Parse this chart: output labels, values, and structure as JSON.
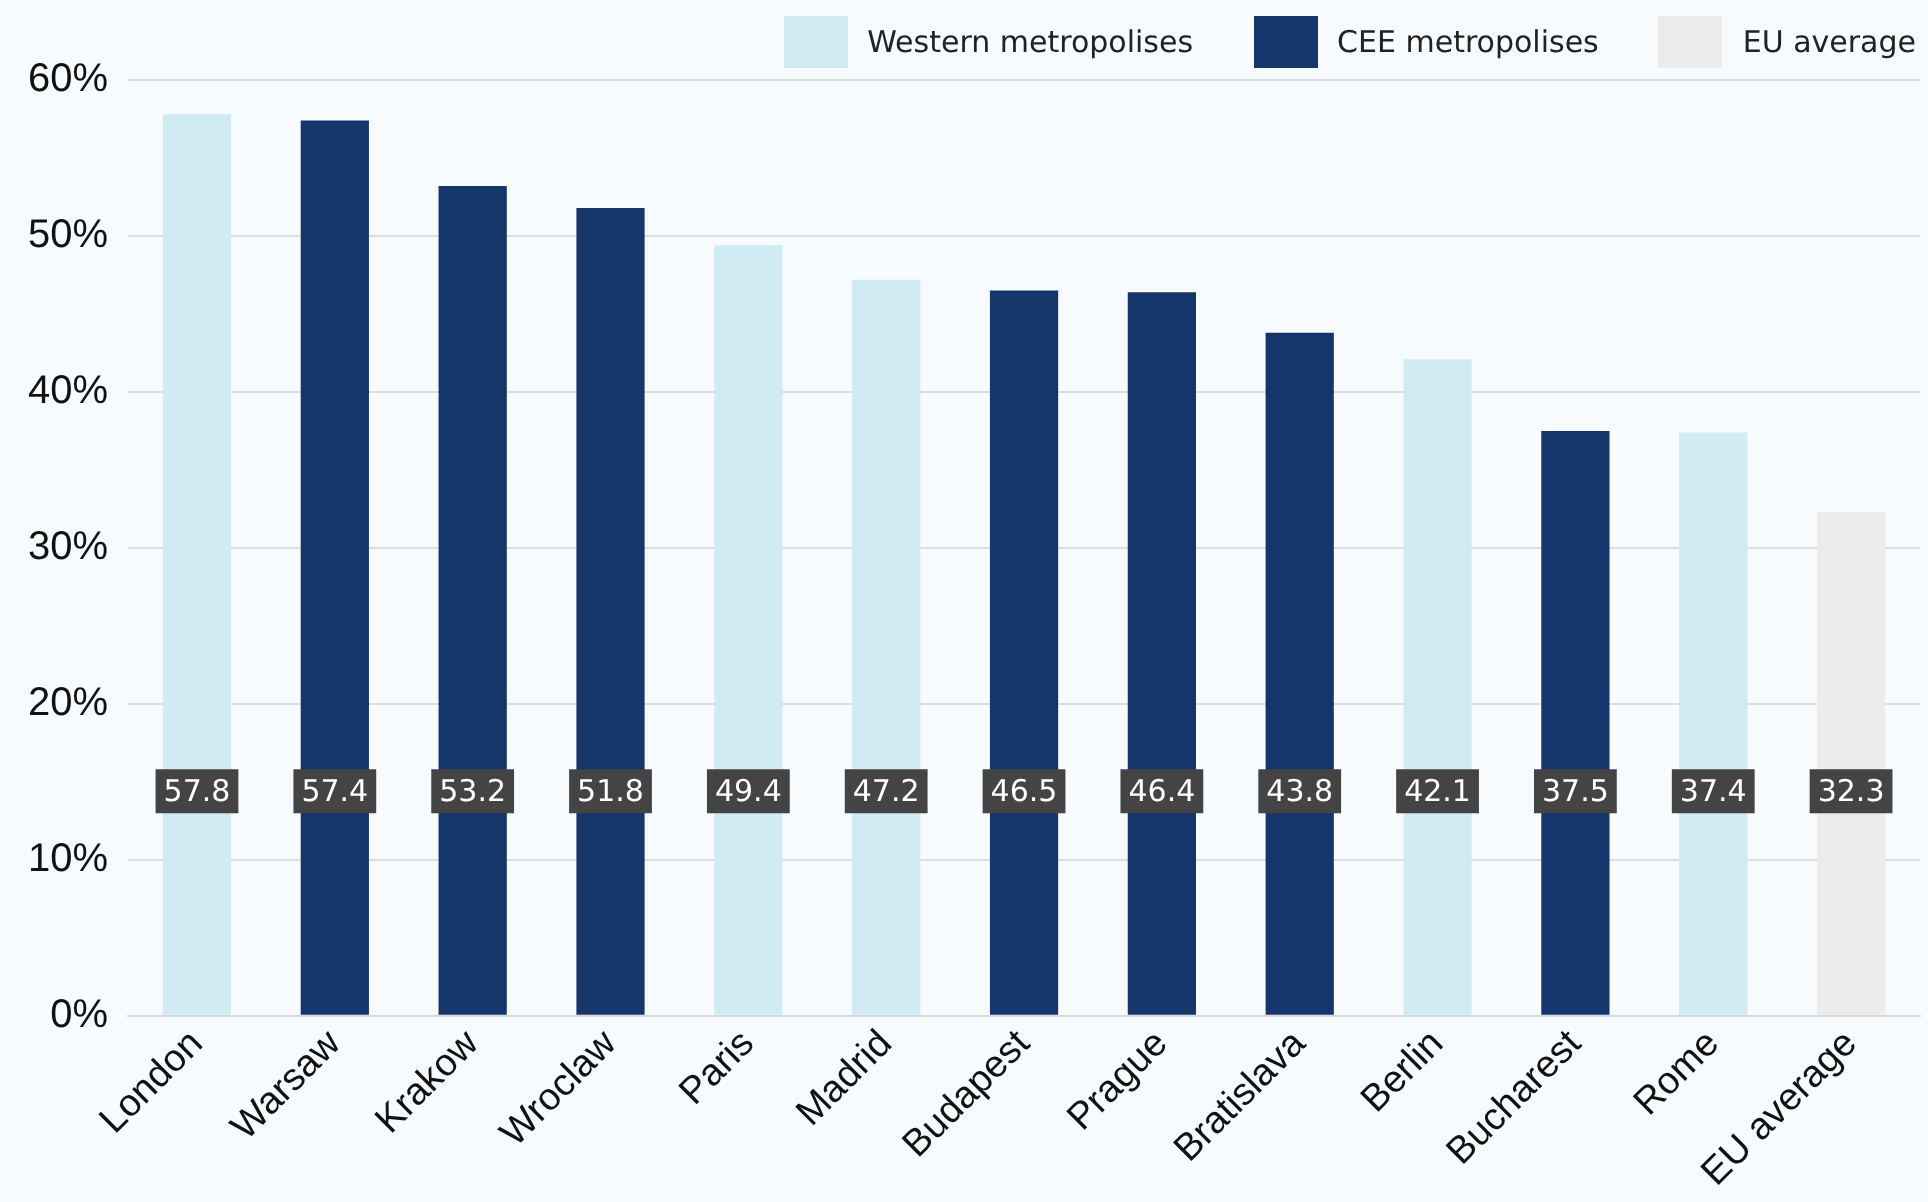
{
  "chart_data": {
    "type": "bar",
    "categories": [
      "London",
      "Warsaw",
      "Krakow",
      "Wroclaw",
      "Paris",
      "Madrid",
      "Budapest",
      "Prague",
      "Bratislava",
      "Berlin",
      "Bucharest",
      "Rome",
      "EU average"
    ],
    "series": [
      {
        "name": "Western metropolises",
        "color": "#d0ebf3",
        "values": [
          57.8,
          null,
          null,
          null,
          49.4,
          47.2,
          null,
          null,
          null,
          42.1,
          null,
          37.4,
          null
        ]
      },
      {
        "name": "CEE metropolises",
        "color": "#14366b",
        "values": [
          null,
          57.4,
          53.2,
          51.8,
          null,
          null,
          46.5,
          46.4,
          43.8,
          null,
          37.5,
          null,
          null
        ]
      },
      {
        "name": "EU average",
        "color": "#ececec",
        "values": [
          null,
          null,
          null,
          null,
          null,
          null,
          null,
          null,
          null,
          null,
          null,
          null,
          32.3
        ]
      }
    ],
    "ylim": [
      0,
      60
    ],
    "yticks": [
      {
        "value": 0,
        "label": "0%"
      },
      {
        "value": 10,
        "label": "10%"
      },
      {
        "value": 20,
        "label": "20%"
      },
      {
        "value": 30,
        "label": "30%"
      },
      {
        "value": 40,
        "label": "40%"
      },
      {
        "value": 50,
        "label": "50%"
      },
      {
        "value": 60,
        "label": "60%"
      }
    ],
    "grid": "y",
    "legend": "top right",
    "data_labels": true
  }
}
